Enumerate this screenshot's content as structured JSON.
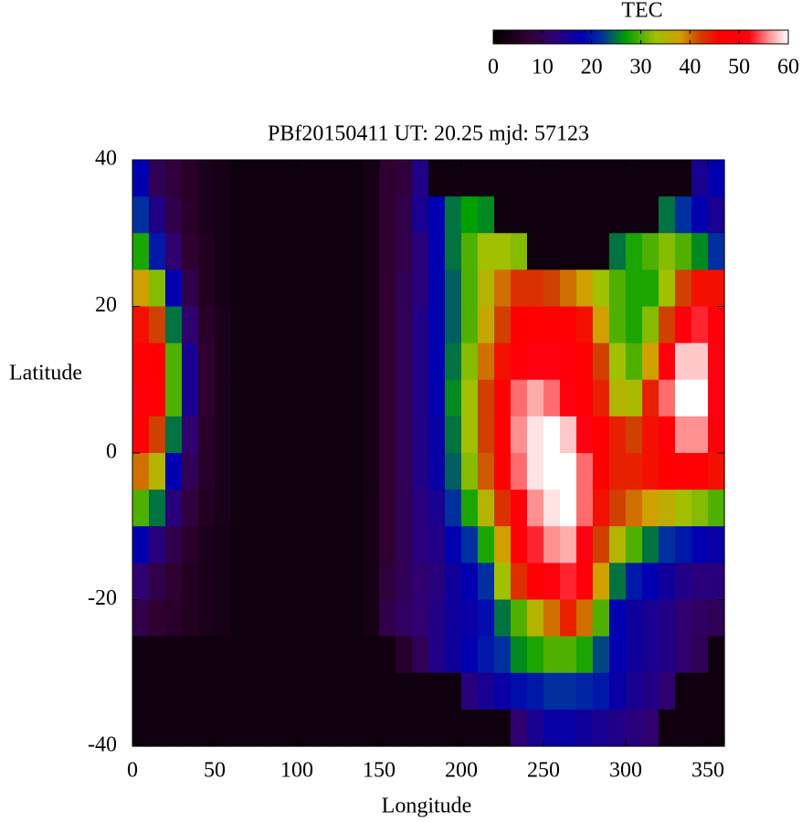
{
  "chart_data": {
    "type": "heatmap",
    "title": "PBf20150411  UT: 20.25  mjd: 57123",
    "x_label": "Longitude",
    "y_label": "Latitude",
    "colorbar_label": "TEC",
    "xlim": [
      0,
      360
    ],
    "xticks": [
      0,
      50,
      100,
      150,
      200,
      250,
      300,
      350
    ],
    "ylim": [
      -40,
      40
    ],
    "yticks": [
      -40,
      -20,
      0,
      20,
      40
    ],
    "clim": [
      0,
      60
    ],
    "cticks": [
      0,
      10,
      20,
      30,
      40,
      50,
      60
    ],
    "colorscale": [
      [
        0,
        "#000000"
      ],
      [
        7,
        "#300030"
      ],
      [
        12,
        "#300070"
      ],
      [
        18,
        "#0000b0"
      ],
      [
        22,
        "#0030a0"
      ],
      [
        27,
        "#00a000"
      ],
      [
        33,
        "#a0c000"
      ],
      [
        38,
        "#d0a000"
      ],
      [
        42,
        "#d04000"
      ],
      [
        46,
        "#ff0000"
      ],
      [
        52,
        "#ff0010"
      ],
      [
        56,
        "#ff9090"
      ],
      [
        60,
        "#ffffff"
      ]
    ],
    "x": [
      5,
      15,
      25,
      35,
      45,
      55,
      65,
      75,
      85,
      95,
      105,
      115,
      125,
      135,
      145,
      155,
      165,
      175,
      185,
      195,
      205,
      215,
      225,
      235,
      245,
      255,
      265,
      275,
      285,
      295,
      305,
      315,
      325,
      335,
      345,
      355
    ],
    "y": [
      37.5,
      32.5,
      27.5,
      22.5,
      17.5,
      12.5,
      7.5,
      2.5,
      -2.5,
      -7.5,
      -12.5,
      -17.5,
      -22.5,
      -27.5,
      -32.5,
      -37.5
    ],
    "z": [
      [
        18,
        10,
        8,
        6,
        4,
        3,
        2,
        2,
        2,
        2,
        2,
        2,
        2,
        2,
        3,
        7,
        8,
        14,
        2,
        2,
        2,
        2,
        2,
        2,
        2,
        2,
        2,
        2,
        2,
        2,
        2,
        2,
        2,
        2,
        15,
        18
      ],
      [
        22,
        14,
        9,
        6,
        4,
        3,
        2,
        2,
        2,
        2,
        2,
        2,
        2,
        2,
        3,
        7,
        9,
        15,
        18,
        25,
        27,
        26,
        2,
        2,
        2,
        2,
        2,
        2,
        2,
        2,
        2,
        2,
        25,
        22,
        18,
        15
      ],
      [
        28,
        20,
        12,
        7,
        5,
        3,
        2,
        2,
        2,
        2,
        2,
        2,
        2,
        2,
        3,
        7,
        9,
        13,
        18,
        25,
        30,
        33,
        33,
        32,
        2,
        2,
        2,
        2,
        2,
        25,
        28,
        30,
        32,
        30,
        26,
        22
      ],
      [
        38,
        32,
        18,
        9,
        5,
        3,
        2,
        2,
        2,
        2,
        2,
        2,
        2,
        2,
        3,
        7,
        10,
        13,
        18,
        24,
        30,
        35,
        40,
        43,
        43,
        42,
        40,
        38,
        33,
        30,
        28,
        28,
        33,
        42,
        45,
        45
      ],
      [
        45,
        42,
        25,
        12,
        6,
        4,
        2,
        2,
        2,
        2,
        2,
        2,
        2,
        2,
        3,
        7,
        10,
        14,
        18,
        24,
        30,
        37,
        42,
        46,
        47,
        48,
        47,
        45,
        38,
        30,
        28,
        32,
        42,
        50,
        53,
        50
      ],
      [
        48,
        46,
        30,
        15,
        7,
        4,
        2,
        2,
        2,
        2,
        2,
        2,
        2,
        2,
        3,
        7,
        10,
        14,
        18,
        25,
        32,
        40,
        45,
        50,
        52,
        52,
        50,
        47,
        42,
        33,
        30,
        38,
        50,
        58,
        58,
        52
      ],
      [
        50,
        47,
        30,
        15,
        7,
        4,
        2,
        2,
        2,
        2,
        2,
        2,
        2,
        2,
        3,
        7,
        10,
        14,
        18,
        26,
        33,
        42,
        47,
        55,
        57,
        55,
        52,
        48,
        44,
        35,
        34,
        44,
        55,
        60,
        60,
        52
      ],
      [
        48,
        42,
        25,
        12,
        6,
        4,
        2,
        2,
        2,
        2,
        2,
        2,
        2,
        2,
        3,
        7,
        10,
        14,
        17,
        25,
        33,
        42,
        48,
        56,
        59,
        60,
        58,
        52,
        46,
        44,
        42,
        45,
        50,
        56,
        56,
        50
      ],
      [
        40,
        35,
        18,
        10,
        6,
        4,
        2,
        2,
        2,
        2,
        2,
        2,
        2,
        2,
        3,
        7,
        10,
        14,
        17,
        24,
        32,
        41,
        47,
        55,
        59,
        60,
        60,
        55,
        46,
        44,
        44,
        45,
        46,
        48,
        47,
        45
      ],
      [
        30,
        25,
        13,
        8,
        5,
        4,
        2,
        2,
        2,
        2,
        2,
        2,
        2,
        2,
        3,
        7,
        10,
        13,
        15,
        22,
        28,
        35,
        43,
        50,
        56,
        59,
        60,
        55,
        45,
        42,
        40,
        38,
        36,
        33,
        32,
        30
      ],
      [
        18,
        13,
        9,
        6,
        4,
        3,
        2,
        2,
        2,
        2,
        2,
        2,
        2,
        2,
        3,
        7,
        10,
        13,
        14,
        18,
        22,
        28,
        38,
        48,
        53,
        56,
        57,
        52,
        42,
        35,
        30,
        25,
        22,
        20,
        18,
        17
      ],
      [
        12,
        9,
        7,
        5,
        4,
        3,
        2,
        2,
        2,
        2,
        2,
        2,
        2,
        2,
        3,
        8,
        10,
        12,
        13,
        16,
        18,
        22,
        33,
        43,
        48,
        51,
        53,
        50,
        38,
        25,
        20,
        18,
        16,
        14,
        13,
        13
      ],
      [
        9,
        7,
        6,
        5,
        4,
        3,
        2,
        2,
        2,
        2,
        2,
        2,
        2,
        2,
        3,
        9,
        11,
        12,
        14,
        16,
        17,
        19,
        25,
        30,
        35,
        40,
        44,
        40,
        30,
        18,
        16,
        15,
        14,
        12,
        11,
        10
      ],
      [
        2,
        2,
        2,
        2,
        2,
        2,
        2,
        2,
        2,
        2,
        2,
        2,
        2,
        2,
        2,
        2,
        6,
        10,
        14,
        16,
        18,
        20,
        22,
        26,
        28,
        30,
        30,
        28,
        23,
        18,
        16,
        15,
        14,
        12,
        10,
        2
      ],
      [
        2,
        2,
        2,
        2,
        2,
        2,
        2,
        2,
        2,
        2,
        2,
        2,
        2,
        2,
        2,
        2,
        2,
        2,
        2,
        2,
        13,
        15,
        17,
        19,
        20,
        22,
        22,
        21,
        20,
        17,
        15,
        14,
        12,
        2,
        2,
        2
      ],
      [
        2,
        2,
        2,
        2,
        2,
        2,
        2,
        2,
        2,
        2,
        2,
        2,
        2,
        2,
        2,
        2,
        2,
        2,
        2,
        2,
        2,
        2,
        2,
        12,
        15,
        17,
        17,
        16,
        15,
        14,
        13,
        12,
        2,
        2,
        2,
        2
      ]
    ]
  }
}
